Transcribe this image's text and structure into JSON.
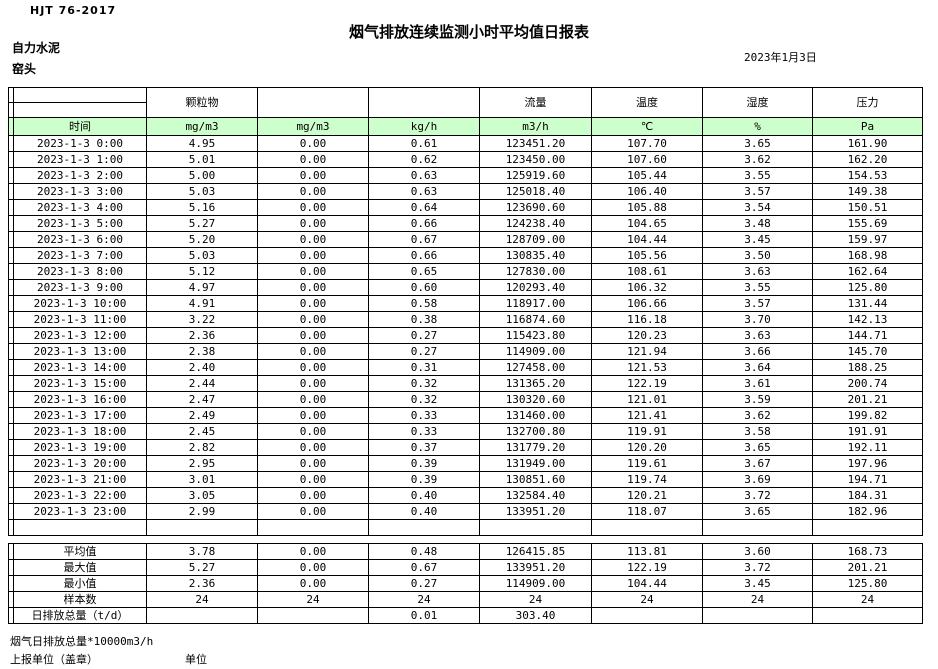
{
  "meta": {
    "standard": "HJT  76-2017",
    "title": "烟气排放连续监测小时平均值日报表",
    "company": "自力水泥",
    "location": "窑头",
    "date": "2023年1月3日"
  },
  "colors": {
    "unit_row_bg": "#ccffcc",
    "border": "#000000"
  },
  "table": {
    "group_headers": [
      "颗粒物",
      "",
      "",
      "流量",
      "温度",
      "湿度",
      "压力"
    ],
    "unit_row": [
      "时间",
      "mg/m3",
      "mg/m3",
      "kg/h",
      "m3/h",
      "℃",
      "%",
      "Pa"
    ],
    "rows": [
      {
        "time": "2023-1-3 0:00",
        "values": [
          "4.95",
          "0.00",
          "0.61",
          "123451.20",
          "107.70",
          "3.65",
          "161.90"
        ]
      },
      {
        "time": "2023-1-3 1:00",
        "values": [
          "5.01",
          "0.00",
          "0.62",
          "123450.00",
          "107.60",
          "3.62",
          "162.20"
        ]
      },
      {
        "time": "2023-1-3 2:00",
        "values": [
          "5.00",
          "0.00",
          "0.63",
          "125919.60",
          "105.44",
          "3.55",
          "154.53"
        ]
      },
      {
        "time": "2023-1-3 3:00",
        "values": [
          "5.03",
          "0.00",
          "0.63",
          "125018.40",
          "106.40",
          "3.57",
          "149.38"
        ]
      },
      {
        "time": "2023-1-3 4:00",
        "values": [
          "5.16",
          "0.00",
          "0.64",
          "123690.60",
          "105.88",
          "3.54",
          "150.51"
        ]
      },
      {
        "time": "2023-1-3 5:00",
        "values": [
          "5.27",
          "0.00",
          "0.66",
          "124238.40",
          "104.65",
          "3.48",
          "155.69"
        ]
      },
      {
        "time": "2023-1-3 6:00",
        "values": [
          "5.20",
          "0.00",
          "0.67",
          "128709.00",
          "104.44",
          "3.45",
          "159.97"
        ]
      },
      {
        "time": "2023-1-3 7:00",
        "values": [
          "5.03",
          "0.00",
          "0.66",
          "130835.40",
          "105.56",
          "3.50",
          "168.98"
        ]
      },
      {
        "time": "2023-1-3 8:00",
        "values": [
          "5.12",
          "0.00",
          "0.65",
          "127830.00",
          "108.61",
          "3.63",
          "162.64"
        ]
      },
      {
        "time": "2023-1-3 9:00",
        "values": [
          "4.97",
          "0.00",
          "0.60",
          "120293.40",
          "106.32",
          "3.55",
          "125.80"
        ]
      },
      {
        "time": "2023-1-3 10:00",
        "values": [
          "4.91",
          "0.00",
          "0.58",
          "118917.00",
          "106.66",
          "3.57",
          "131.44"
        ]
      },
      {
        "time": "2023-1-3 11:00",
        "values": [
          "3.22",
          "0.00",
          "0.38",
          "116874.60",
          "116.18",
          "3.70",
          "142.13"
        ]
      },
      {
        "time": "2023-1-3 12:00",
        "values": [
          "2.36",
          "0.00",
          "0.27",
          "115423.80",
          "120.23",
          "3.63",
          "144.71"
        ]
      },
      {
        "time": "2023-1-3 13:00",
        "values": [
          "2.38",
          "0.00",
          "0.27",
          "114909.00",
          "121.94",
          "3.66",
          "145.70"
        ]
      },
      {
        "time": "2023-1-3 14:00",
        "values": [
          "2.40",
          "0.00",
          "0.31",
          "127458.00",
          "121.53",
          "3.64",
          "188.25"
        ]
      },
      {
        "time": "2023-1-3 15:00",
        "values": [
          "2.44",
          "0.00",
          "0.32",
          "131365.20",
          "122.19",
          "3.61",
          "200.74"
        ]
      },
      {
        "time": "2023-1-3 16:00",
        "values": [
          "2.47",
          "0.00",
          "0.32",
          "130320.60",
          "121.01",
          "3.59",
          "201.21"
        ]
      },
      {
        "time": "2023-1-3 17:00",
        "values": [
          "2.49",
          "0.00",
          "0.33",
          "131460.00",
          "121.41",
          "3.62",
          "199.82"
        ]
      },
      {
        "time": "2023-1-3 18:00",
        "values": [
          "2.45",
          "0.00",
          "0.33",
          "132700.80",
          "119.91",
          "3.58",
          "191.91"
        ]
      },
      {
        "time": "2023-1-3 19:00",
        "values": [
          "2.82",
          "0.00",
          "0.37",
          "131779.20",
          "120.20",
          "3.65",
          "192.11"
        ]
      },
      {
        "time": "2023-1-3 20:00",
        "values": [
          "2.95",
          "0.00",
          "0.39",
          "131949.00",
          "119.61",
          "3.67",
          "197.96"
        ]
      },
      {
        "time": "2023-1-3 21:00",
        "values": [
          "3.01",
          "0.00",
          "0.39",
          "130851.60",
          "119.74",
          "3.69",
          "194.71"
        ]
      },
      {
        "time": "2023-1-3 22:00",
        "values": [
          "3.05",
          "0.00",
          "0.40",
          "132584.40",
          "120.21",
          "3.72",
          "184.31"
        ]
      },
      {
        "time": "2023-1-3 23:00",
        "values": [
          "2.99",
          "0.00",
          "0.40",
          "133951.20",
          "118.07",
          "3.65",
          "182.96"
        ]
      }
    ],
    "summary": [
      {
        "label": "平均值",
        "values": [
          "3.78",
          "0.00",
          "0.48",
          "126415.85",
          "113.81",
          "3.60",
          "168.73"
        ]
      },
      {
        "label": "最大值",
        "values": [
          "5.27",
          "0.00",
          "0.67",
          "133951.20",
          "122.19",
          "3.72",
          "201.21"
        ]
      },
      {
        "label": "最小值",
        "values": [
          "2.36",
          "0.00",
          "0.27",
          "114909.00",
          "104.44",
          "3.45",
          "125.80"
        ]
      },
      {
        "label": "样本数",
        "values": [
          "24",
          "24",
          "24",
          "24",
          "24",
          "24",
          "24"
        ]
      },
      {
        "label": "日排放总量（t/d）",
        "values": [
          "",
          "",
          "0.01",
          "303.40",
          "",
          "",
          ""
        ]
      }
    ]
  },
  "footer": {
    "note": "烟气日排放总量*10000m3/h",
    "report_unit": "上报单位（盖章）",
    "unit_label": "单位"
  }
}
